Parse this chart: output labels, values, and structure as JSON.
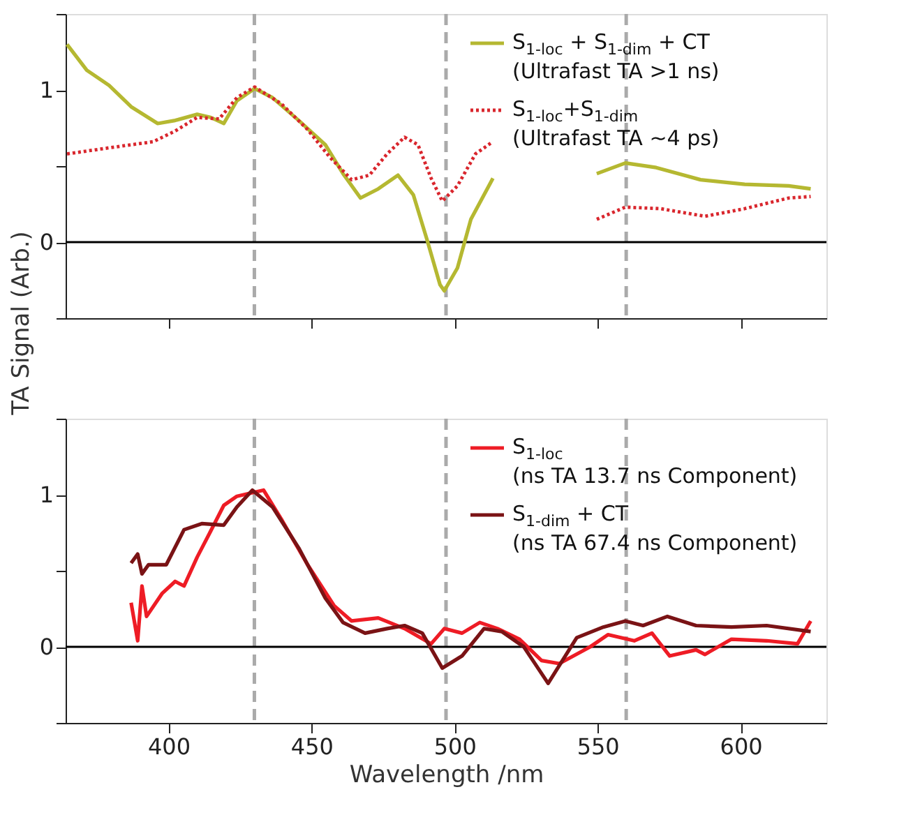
{
  "chart_data": [
    {
      "type": "line",
      "ylabel": "TA Signal (Arb.)",
      "xlim": [
        364,
        630
      ],
      "xticks": [
        400,
        450,
        500,
        550,
        600
      ],
      "ylim": [
        -0.5,
        1.5
      ],
      "yticks": [
        {
          "value": -0.5,
          "label": null
        },
        0,
        {
          "value": 0.5,
          "label": null
        },
        1,
        {
          "value": 1.5,
          "label": null
        }
      ],
      "tick_labels": "y",
      "grid": false,
      "legend": "top right",
      "line_style": "solid",
      "marker": "none",
      "ref_lines": [
        {
          "axis": "x",
          "value": 430,
          "color": "#aaaaaa",
          "line_style": "dashed"
        },
        {
          "axis": "x",
          "value": 497,
          "color": "#aaaaaa",
          "line_style": "dashed"
        },
        {
          "axis": "x",
          "value": 560,
          "color": "#aaaaaa",
          "line_style": "dashed"
        },
        {
          "axis": "y",
          "value": 0,
          "color": "#000000",
          "line_style": "solid"
        }
      ],
      "series": [
        {
          "name": "S$_{1-loc}$ + S$_{1-dim}$ + CT\n(Ultrafast TA >1 ns)",
          "color": "#b5b831",
          "line_style": "solid",
          "x": [
            364.5,
            371.4,
            379.2,
            386.9,
            396.2,
            402.3,
            410,
            414.7,
            419.3,
            423.9,
            430.1,
            436.3,
            445.5,
            454.8,
            461,
            467.1,
            473.3,
            480.2,
            485.6,
            490.3,
            494.9,
            496.4,
            501,
            505.7,
            513.4,
            530,
            549.7,
            559.7,
            570.5,
            586,
            601.4,
            616.8,
            624.5
          ],
          "values": [
            1.3,
            1.13,
            1.03,
            0.89,
            0.78,
            0.8,
            0.84,
            0.82,
            0.78,
            0.93,
            1.01,
            0.95,
            0.8,
            0.64,
            0.45,
            0.29,
            0.35,
            0.44,
            0.31,
            0.02,
            -0.28,
            -0.32,
            -0.17,
            0.15,
            0.42,
            null,
            0.45,
            0.52,
            0.49,
            0.41,
            0.38,
            0.37,
            0.35
          ]
        },
        {
          "name": "S$_{1-loc}$+S$_{1-dim}$\n(Ultrafast TA ~4 ps)",
          "color": "#d9262d",
          "line_style": "dotted",
          "x": [
            364.5,
            379.2,
            394.6,
            402.3,
            410,
            417.7,
            423.9,
            430.1,
            439.4,
            448.6,
            456.3,
            464,
            470.2,
            476.4,
            482.5,
            487.2,
            491.8,
            495.7,
            501,
            507.3,
            512.6,
            530,
            549.7,
            559.7,
            572,
            587.5,
            601.4,
            616.8,
            624.5
          ],
          "values": [
            0.58,
            0.62,
            0.66,
            0.73,
            0.82,
            0.81,
            0.95,
            1.02,
            0.91,
            0.74,
            0.56,
            0.41,
            0.44,
            0.58,
            0.69,
            0.64,
            0.42,
            0.27,
            0.37,
            0.58,
            0.65,
            null,
            0.15,
            0.23,
            0.22,
            0.17,
            0.22,
            0.29,
            0.3
          ]
        }
      ]
    },
    {
      "type": "line",
      "xlabel": "Wavelength /nm",
      "xlim": [
        364,
        630
      ],
      "xticks": [
        400,
        450,
        500,
        550,
        600
      ],
      "ylim": [
        -0.5,
        1.5
      ],
      "yticks": [
        {
          "value": -0.5,
          "label": null
        },
        0,
        {
          "value": 0.5,
          "label": null
        },
        1,
        {
          "value": 1.5,
          "label": null
        }
      ],
      "grid": false,
      "legend": "top right",
      "line_style": "solid",
      "marker": "none",
      "ref_lines": [
        {
          "axis": "x",
          "value": 430,
          "color": "#aaaaaa",
          "line_style": "dashed"
        },
        {
          "axis": "x",
          "value": 497,
          "color": "#aaaaaa",
          "line_style": "dashed"
        },
        {
          "axis": "x",
          "value": 560,
          "color": "#aaaaaa",
          "line_style": "dashed"
        },
        {
          "axis": "y",
          "value": 0,
          "color": "#000000",
          "line_style": "solid"
        }
      ],
      "series": [
        {
          "name": "S$_{1-loc}$\n(ns TA 13.7 ns Component)",
          "color": "#ee1c25",
          "x": [
            386.9,
            389.2,
            390.7,
            392.3,
            397.7,
            402.3,
            405.4,
            410,
            414.7,
            419.3,
            423.9,
            428.6,
            433.2,
            439.4,
            448.6,
            457.9,
            464,
            473.3,
            482.5,
            491.8,
            496.4,
            502.6,
            508.8,
            515,
            522.7,
            530.4,
            536.6,
            547.4,
            553.6,
            562.8,
            569,
            575.2,
            584.4,
            587.5,
            596.8,
            609.1,
            619.9,
            624.5
          ],
          "values": [
            0.29,
            0.04,
            0.4,
            0.2,
            0.35,
            0.43,
            0.4,
            0.59,
            0.76,
            0.93,
            0.99,
            1.01,
            1.03,
            0.84,
            0.54,
            0.27,
            0.17,
            0.19,
            0.12,
            0.02,
            0.12,
            0.09,
            0.16,
            0.12,
            0.05,
            -0.09,
            -0.11,
            0.0,
            0.08,
            0.04,
            0.09,
            -0.06,
            -0.02,
            -0.05,
            0.05,
            0.04,
            0.02,
            0.17
          ]
        },
        {
          "name": "S$_{1-dim}$ + CT\n(ns TA 67.4 ns Component)",
          "color": "#7a1315",
          "x": [
            386.9,
            389.2,
            390.7,
            393,
            399.2,
            405.4,
            411.6,
            419.3,
            423.9,
            429.3,
            436.3,
            445.5,
            454.8,
            461,
            468.7,
            476.4,
            482.5,
            488.7,
            495.7,
            502.6,
            510.3,
            516.5,
            524.2,
            532.7,
            542.7,
            552,
            559.7,
            565.9,
            574.4,
            584.4,
            596.8,
            609.1,
            624.5
          ],
          "values": [
            0.55,
            0.61,
            0.48,
            0.54,
            0.54,
            0.77,
            0.81,
            0.8,
            0.92,
            1.03,
            0.92,
            0.65,
            0.32,
            0.16,
            0.09,
            0.12,
            0.14,
            0.09,
            -0.14,
            -0.06,
            0.12,
            0.1,
            0.0,
            -0.24,
            0.06,
            0.13,
            0.17,
            0.14,
            0.2,
            0.14,
            0.13,
            0.14,
            0.1
          ]
        }
      ]
    }
  ]
}
